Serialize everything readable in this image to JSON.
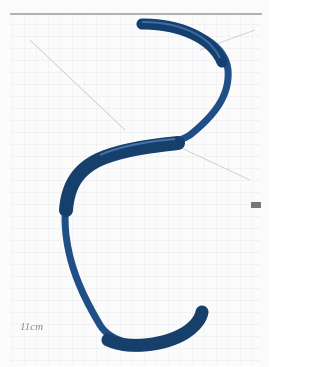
{
  "annotations": [
    "11cm"
  ]
}
